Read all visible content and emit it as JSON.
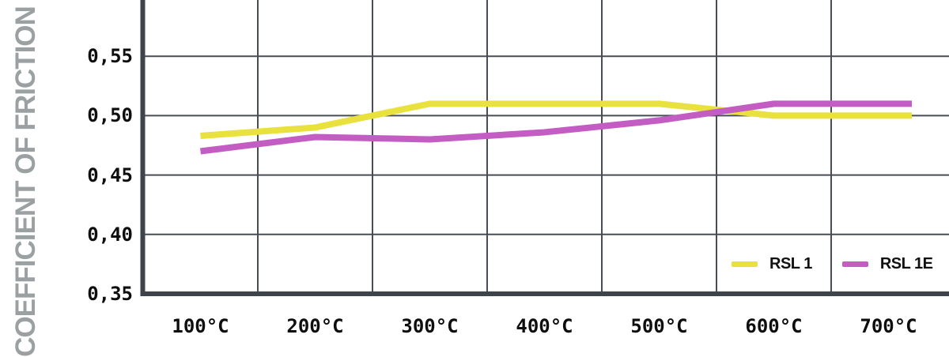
{
  "chart_data": {
    "type": "line",
    "title": "",
    "xlabel": "",
    "ylabel": "COEFFICIENT OF FRICTION",
    "categories": [
      "100°C",
      "200°C",
      "300°C",
      "400°C",
      "500°C",
      "600°C",
      "700°C"
    ],
    "series": [
      {
        "name": "RSL 1",
        "color": "#e8e13e",
        "values": [
          0.483,
          0.49,
          0.51,
          0.51,
          0.51,
          0.5,
          0.5
        ]
      },
      {
        "name": "RSL 1E",
        "color": "#c35dc3",
        "values": [
          0.47,
          0.482,
          0.48,
          0.486,
          0.496,
          0.51,
          0.51
        ]
      }
    ],
    "yticks": [
      {
        "label": "0,55",
        "value": 0.55
      },
      {
        "label": "0,50",
        "value": 0.5
      },
      {
        "label": "0,45",
        "value": 0.45
      },
      {
        "label": "0,40",
        "value": 0.4
      },
      {
        "label": "0,35",
        "value": 0.35
      }
    ],
    "ylim": [
      0.35,
      0.597
    ],
    "grid": true,
    "legend_position": "inside-bottom-right",
    "colors": {
      "axis": "#3e444b",
      "grid": "#474d54",
      "tick_text": "#0e0e0e",
      "ylabel_text": "#9ba0a3",
      "background": "#ffffff"
    },
    "line_width": 8
  }
}
